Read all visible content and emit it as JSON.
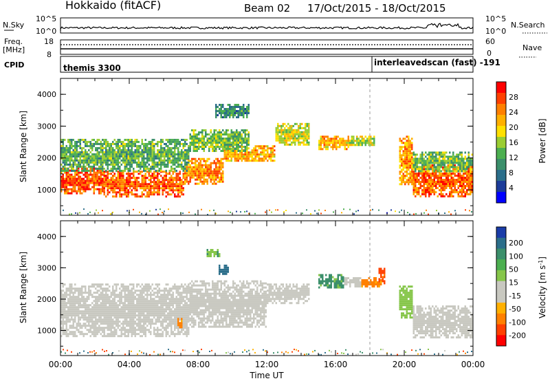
{
  "header": {
    "station": "Hokkaido (fitACF)",
    "beam": "Beam 02",
    "dates": "17/Oct/2015 - 18/Oct/2015"
  },
  "strips": {
    "nsky_label": "N.Sky",
    "nsearch_label": "N.Search",
    "nsky_ticks": [
      "10^5",
      "10^0"
    ],
    "nsearch_ticks": [
      "10^5",
      "10^0"
    ],
    "freq_label": "Freq.",
    "freq_unit": "[MHz]",
    "freq_ticks": [
      "18",
      "8"
    ],
    "nave_label": "Nave",
    "nave_ticks": [
      "60",
      "0"
    ],
    "cpid_label": "CPID",
    "cpid_segments": [
      {
        "name": "themis 3300",
        "start_hour": 0
      },
      {
        "name": "interleavedscan (fast) -191",
        "start_hour": 18
      }
    ]
  },
  "chart_data": [
    {
      "type": "heatmap",
      "title": "",
      "xlabel": "Time UT",
      "ylabel": "Slant Range [km]",
      "x_range_hours": [
        0,
        24
      ],
      "x_ticks": [
        "00:00",
        "04:00",
        "08:00",
        "12:00",
        "16:00",
        "20:00",
        "00:00"
      ],
      "ylim": [
        200,
        4500
      ],
      "y_ticks": [
        "1000",
        "2000",
        "3000",
        "4000"
      ],
      "colorbar_label": "Power [dB]",
      "colorbar_ticks": [
        "4",
        "8",
        "12",
        "16",
        "20",
        "24",
        "28"
      ],
      "colorbar_range": [
        0,
        32
      ],
      "colors": [
        "#0000ff",
        "#1c3c9a",
        "#2b6e8a",
        "#3b8f6b",
        "#4caf50",
        "#9acd32",
        "#ffe000",
        "#ffb000",
        "#ff8000",
        "#ff4000",
        "#ff0000"
      ],
      "marker_line_hour": 18,
      "echo_regions": [
        {
          "t0": 0,
          "t1": 2.5,
          "r0": 900,
          "r1": 1700,
          "value": 27
        },
        {
          "t0": 2.5,
          "t1": 7.2,
          "r0": 800,
          "r1": 1600,
          "value": 26
        },
        {
          "t0": 7.2,
          "t1": 9.5,
          "r0": 1200,
          "r1": 2000,
          "value": 24
        },
        {
          "t0": 9.5,
          "t1": 12.5,
          "r0": 1900,
          "r1": 2400,
          "value": 22
        },
        {
          "t0": 0,
          "t1": 7.5,
          "r0": 1600,
          "r1": 2600,
          "value": 13
        },
        {
          "t0": 7.5,
          "t1": 11,
          "r0": 2200,
          "r1": 2900,
          "value": 14
        },
        {
          "t0": 9,
          "t1": 11,
          "r0": 3300,
          "r1": 3700,
          "value": 10
        },
        {
          "t0": 12.5,
          "t1": 14.5,
          "r0": 2400,
          "r1": 3100,
          "value": 18
        },
        {
          "t0": 15,
          "t1": 16.8,
          "r0": 2300,
          "r1": 2700,
          "value": 22
        },
        {
          "t0": 16.8,
          "t1": 18.3,
          "r0": 2400,
          "r1": 2700,
          "value": 17
        },
        {
          "t0": 19.7,
          "t1": 20.5,
          "r0": 1200,
          "r1": 2700,
          "value": 23
        },
        {
          "t0": 20.5,
          "t1": 24,
          "r0": 800,
          "r1": 1800,
          "value": 26
        },
        {
          "t0": 20.5,
          "t1": 24,
          "r0": 1600,
          "r1": 2200,
          "value": 14
        }
      ]
    },
    {
      "type": "heatmap",
      "title": "",
      "xlabel": "Time UT",
      "ylabel": "Slant Range [km]",
      "x_range_hours": [
        0,
        24
      ],
      "x_ticks": [
        "00:00",
        "04:00",
        "08:00",
        "12:00",
        "16:00",
        "20:00",
        "00:00"
      ],
      "ylim": [
        200,
        4500
      ],
      "y_ticks": [
        "1000",
        "2000",
        "3000",
        "4000"
      ],
      "colorbar_label": "Velocity [m s",
      "colorbar_label_sup": "-1",
      "colorbar_label_end": "]",
      "colorbar_ticks": [
        "200",
        "100",
        "50",
        "15",
        "-15",
        "-50",
        "-100",
        "-200"
      ],
      "colors": [
        "#1a3ca8",
        "#2b6e8a",
        "#3b8f6b",
        "#4caf50",
        "#86c64a",
        "#c8c8c0",
        "#c8c8c0",
        "#ffb000",
        "#ff8000",
        "#ff4000",
        "#ff0000"
      ],
      "marker_line_hour": 18,
      "echo_regions": [
        {
          "t0": 0,
          "t1": 7.5,
          "r0": 800,
          "r1": 2500,
          "value": 0
        },
        {
          "t0": 7.5,
          "t1": 12,
          "r0": 1100,
          "r1": 2600,
          "value": 0
        },
        {
          "t0": 12,
          "t1": 14.5,
          "r0": 1900,
          "r1": 2500,
          "value": 0
        },
        {
          "t0": 6.8,
          "t1": 7.1,
          "r0": 1100,
          "r1": 1400,
          "value": -60
        },
        {
          "t0": 9.2,
          "t1": 9.8,
          "r0": 2800,
          "r1": 3100,
          "value": 120
        },
        {
          "t0": 8.5,
          "t1": 9.3,
          "r0": 3400,
          "r1": 3600,
          "value": 40
        },
        {
          "t0": 15,
          "t1": 16.5,
          "r0": 2400,
          "r1": 2800,
          "value": 60
        },
        {
          "t0": 16.5,
          "t1": 17.5,
          "r0": 2400,
          "r1": 2700,
          "value": 0
        },
        {
          "t0": 17.5,
          "t1": 18.7,
          "r0": 2400,
          "r1": 2700,
          "value": -60
        },
        {
          "t0": 18.5,
          "t1": 18.9,
          "r0": 2500,
          "r1": 3000,
          "value": -110
        },
        {
          "t0": 19.7,
          "t1": 20.5,
          "r0": 1400,
          "r1": 2500,
          "value": 30
        },
        {
          "t0": 20.5,
          "t1": 24,
          "r0": 800,
          "r1": 1800,
          "value": 0
        }
      ]
    }
  ]
}
